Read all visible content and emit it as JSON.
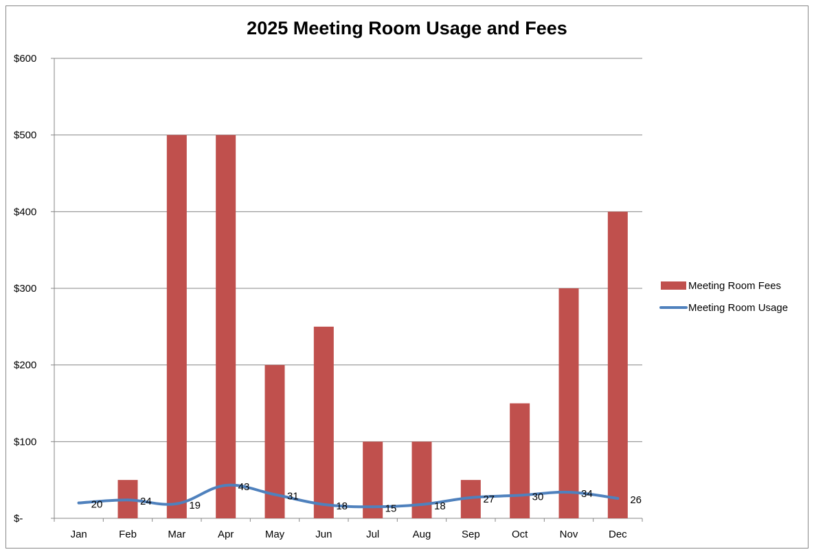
{
  "chart_data": {
    "type": "bar",
    "title": "2025 Meeting Room Usage and Fees",
    "xlabel": "",
    "ylabel": "",
    "categories": [
      "Jan",
      "Feb",
      "Mar",
      "Apr",
      "May",
      "Jun",
      "Jul",
      "Aug",
      "Sep",
      "Oct",
      "Nov",
      "Dec"
    ],
    "ylim": [
      0,
      600
    ],
    "y_ticks": [
      0,
      100,
      200,
      300,
      400,
      500,
      600
    ],
    "y_tick_labels": [
      "$-",
      "$100",
      "$200",
      "$300",
      "$400",
      "$500",
      "$600"
    ],
    "grid": true,
    "legend_position": "right",
    "series": [
      {
        "name": "Meeting Room Fees",
        "type": "bar",
        "color": "#c0504d",
        "values": [
          0,
          50,
          500,
          500,
          200,
          250,
          100,
          100,
          50,
          150,
          300,
          400
        ]
      },
      {
        "name": "Meeting Room Usage",
        "type": "line",
        "color": "#4f81bd",
        "values": [
          20,
          24,
          19,
          43,
          31,
          18,
          15,
          18,
          27,
          30,
          34,
          26
        ],
        "data_labels": [
          "20",
          "24",
          "19",
          "43",
          "31",
          "18",
          "15",
          "18",
          "27",
          "30",
          "34",
          "26"
        ]
      }
    ]
  }
}
